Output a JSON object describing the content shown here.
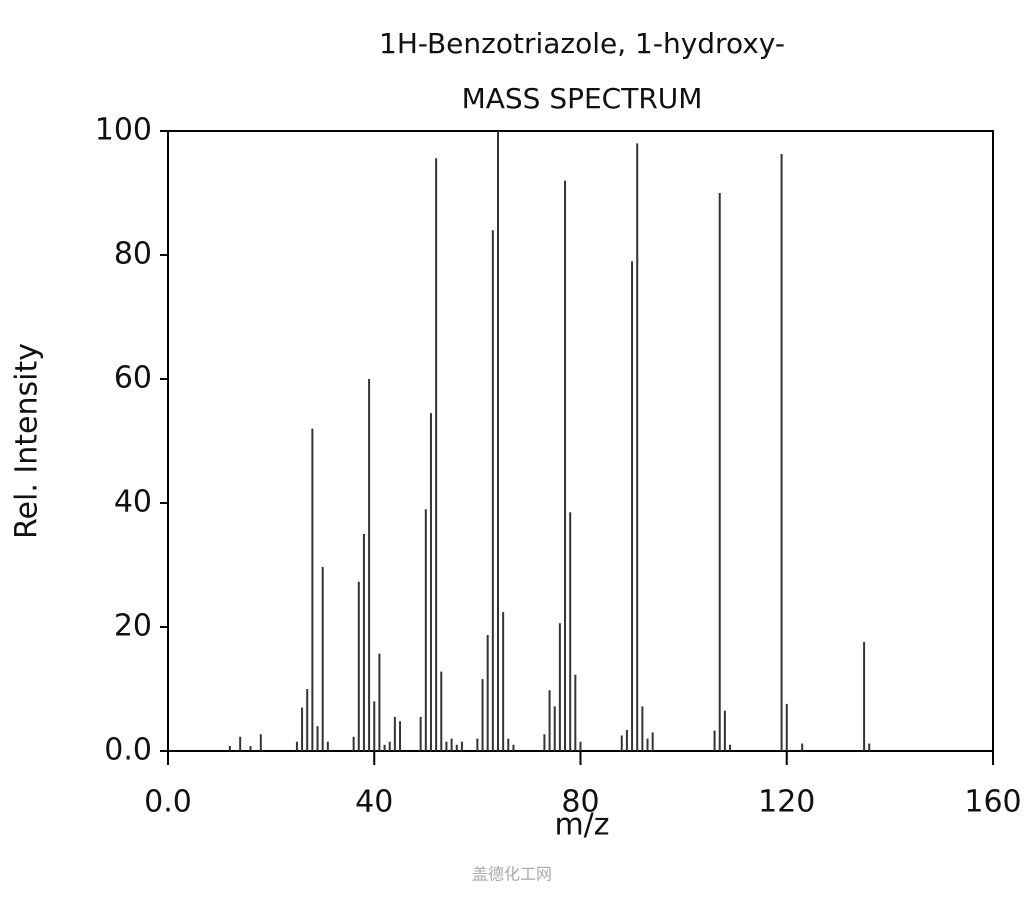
{
  "chart_data": {
    "type": "bar",
    "title": "1H-Benzotriazole, 1-hydroxy-",
    "subtitle": "MASS SPECTRUM",
    "x_label": "m/z",
    "y_label": "Rel. Intensity",
    "watermark": "盖德化工网",
    "color": "#333333",
    "grid": false,
    "xlim": [
      0,
      160
    ],
    "ylim": [
      0,
      100
    ],
    "xticks": [
      {
        "value": 0,
        "label": "0.0"
      },
      40,
      80,
      120,
      160
    ],
    "yticks": [
      {
        "value": 0,
        "label": "0.0"
      },
      20,
      40,
      60,
      80,
      100
    ],
    "x": [
      12,
      14,
      16,
      18,
      25,
      26,
      27,
      28,
      29,
      30,
      31,
      36,
      37,
      38,
      39,
      40,
      41,
      42,
      43,
      44,
      45,
      49,
      50,
      51,
      52,
      53,
      54,
      55,
      56,
      57,
      60,
      61,
      62,
      63,
      64,
      65,
      66,
      67,
      73,
      74,
      75,
      76,
      77,
      78,
      79,
      80,
      88,
      89,
      90,
      91,
      92,
      93,
      94,
      106,
      107,
      108,
      109,
      119,
      120,
      123,
      135,
      136
    ],
    "values": [
      0.8,
      2.3,
      0.8,
      2.7,
      1.5,
      7,
      10,
      52,
      4,
      29.7,
      1.5,
      2.3,
      27.3,
      35,
      60,
      8,
      15.7,
      1,
      1.5,
      5.5,
      4.8,
      5.5,
      39,
      54.5,
      95.6,
      12.8,
      1.5,
      2,
      1,
      1.5,
      2,
      11.6,
      18.7,
      84,
      100,
      22.4,
      2,
      1,
      2.7,
      9.8,
      7.2,
      20.6,
      92,
      38.5,
      12.3,
      1.5,
      2.5,
      3.4,
      79,
      98,
      7.2,
      2,
      3,
      3.3,
      90,
      6.5,
      1,
      96.3,
      7.6,
      1.2,
      17.6,
      1.2
    ]
  }
}
